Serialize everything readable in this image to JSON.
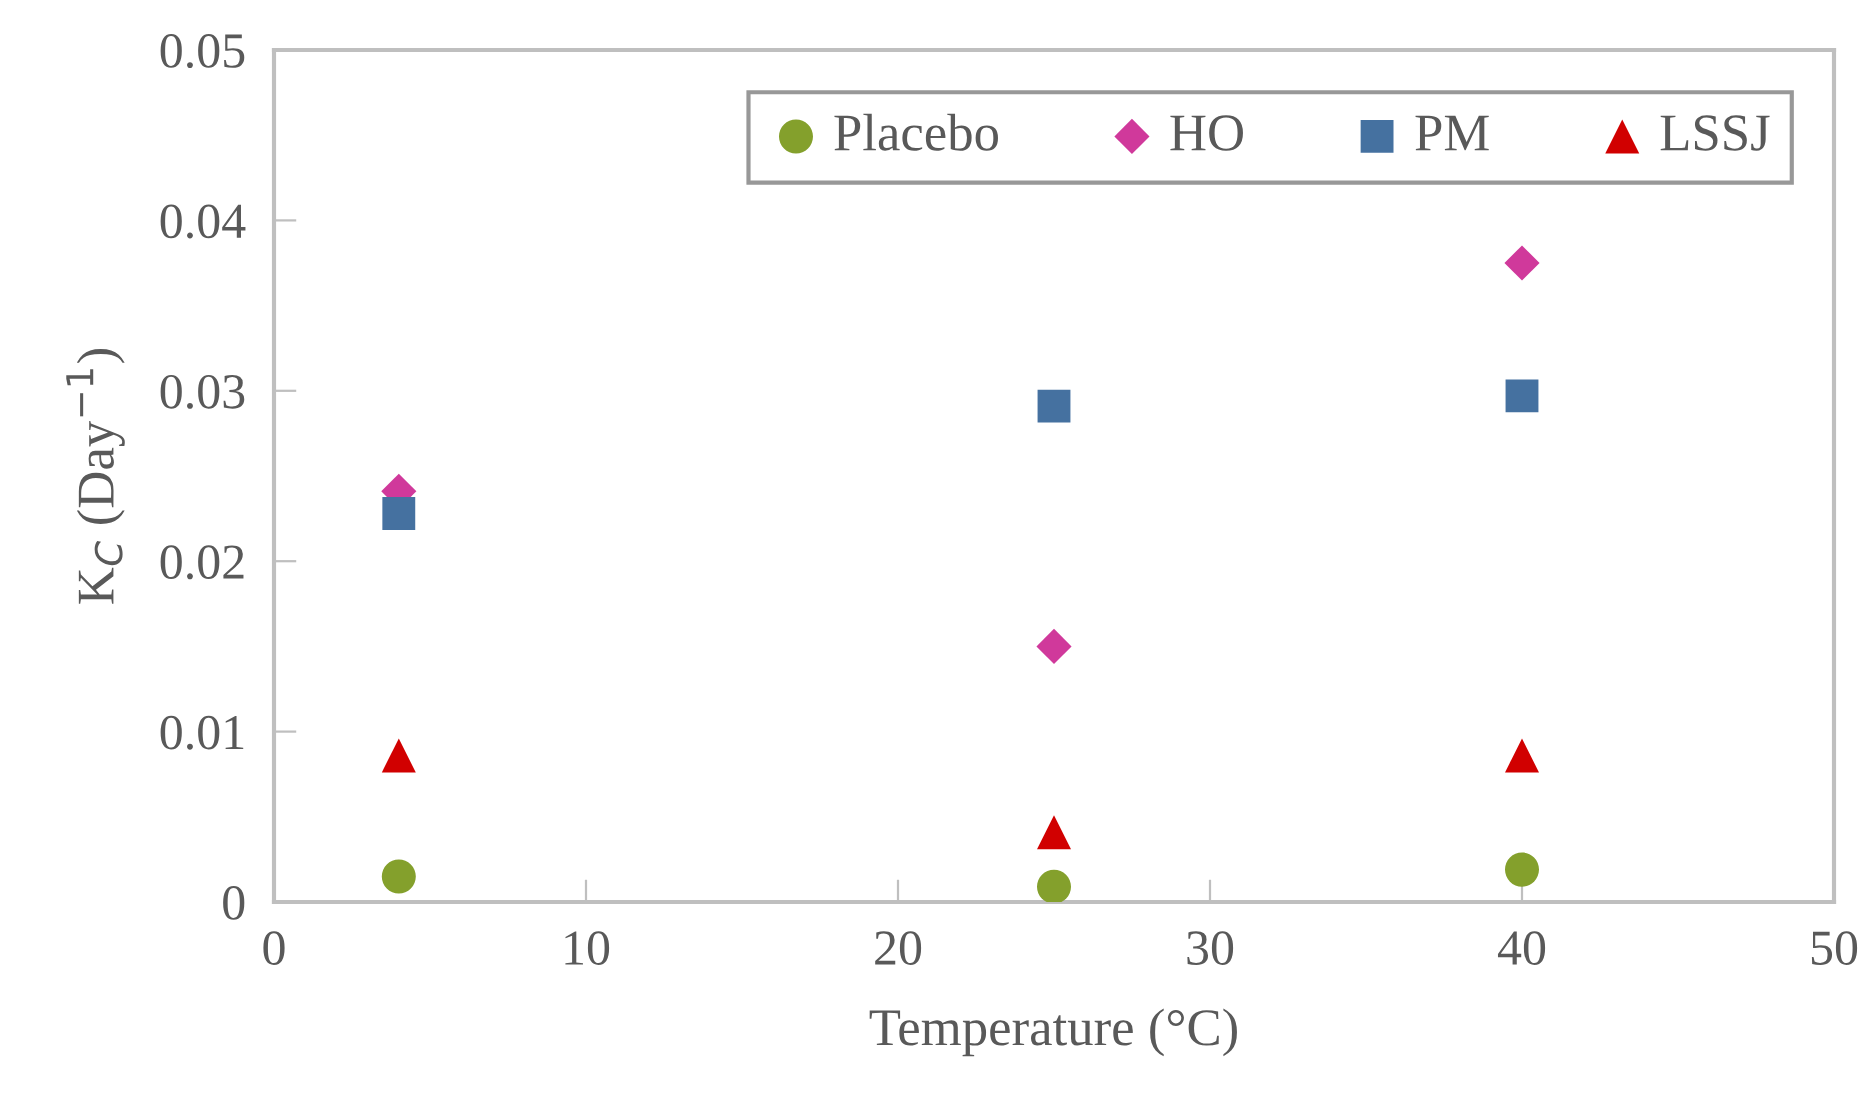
{
  "chart_data": {
    "type": "scatter",
    "xlabel": "Temperature (°C)",
    "ylabel": "K$_{C}$ (Day$^{−1}$)",
    "x": [
      4,
      25,
      40
    ],
    "series": [
      {
        "name": "Placebo",
        "color": "#84a02c",
        "marker": "circle",
        "values": [
          0.0015,
          0.0009,
          0.0019
        ]
      },
      {
        "name": "HO",
        "color": "#d0399b",
        "marker": "diamond",
        "values": [
          0.0241,
          0.015,
          0.0375
        ]
      },
      {
        "name": "PM",
        "color": "#4571a0",
        "marker": "square",
        "values": [
          0.0228,
          0.0291,
          0.0297
        ]
      },
      {
        "name": "LSSJ",
        "color": "#d10000",
        "marker": "triangle",
        "values": [
          0.0086,
          0.0041,
          0.0086
        ]
      }
    ],
    "xlim": [
      0,
      50
    ],
    "xticks": [
      0,
      10,
      20,
      30,
      40,
      50
    ],
    "ylim": [
      0,
      0.05
    ],
    "yticks": [
      0,
      0.01,
      0.02,
      0.03,
      0.04,
      0.05
    ],
    "grid": false,
    "legend": "top right"
  }
}
